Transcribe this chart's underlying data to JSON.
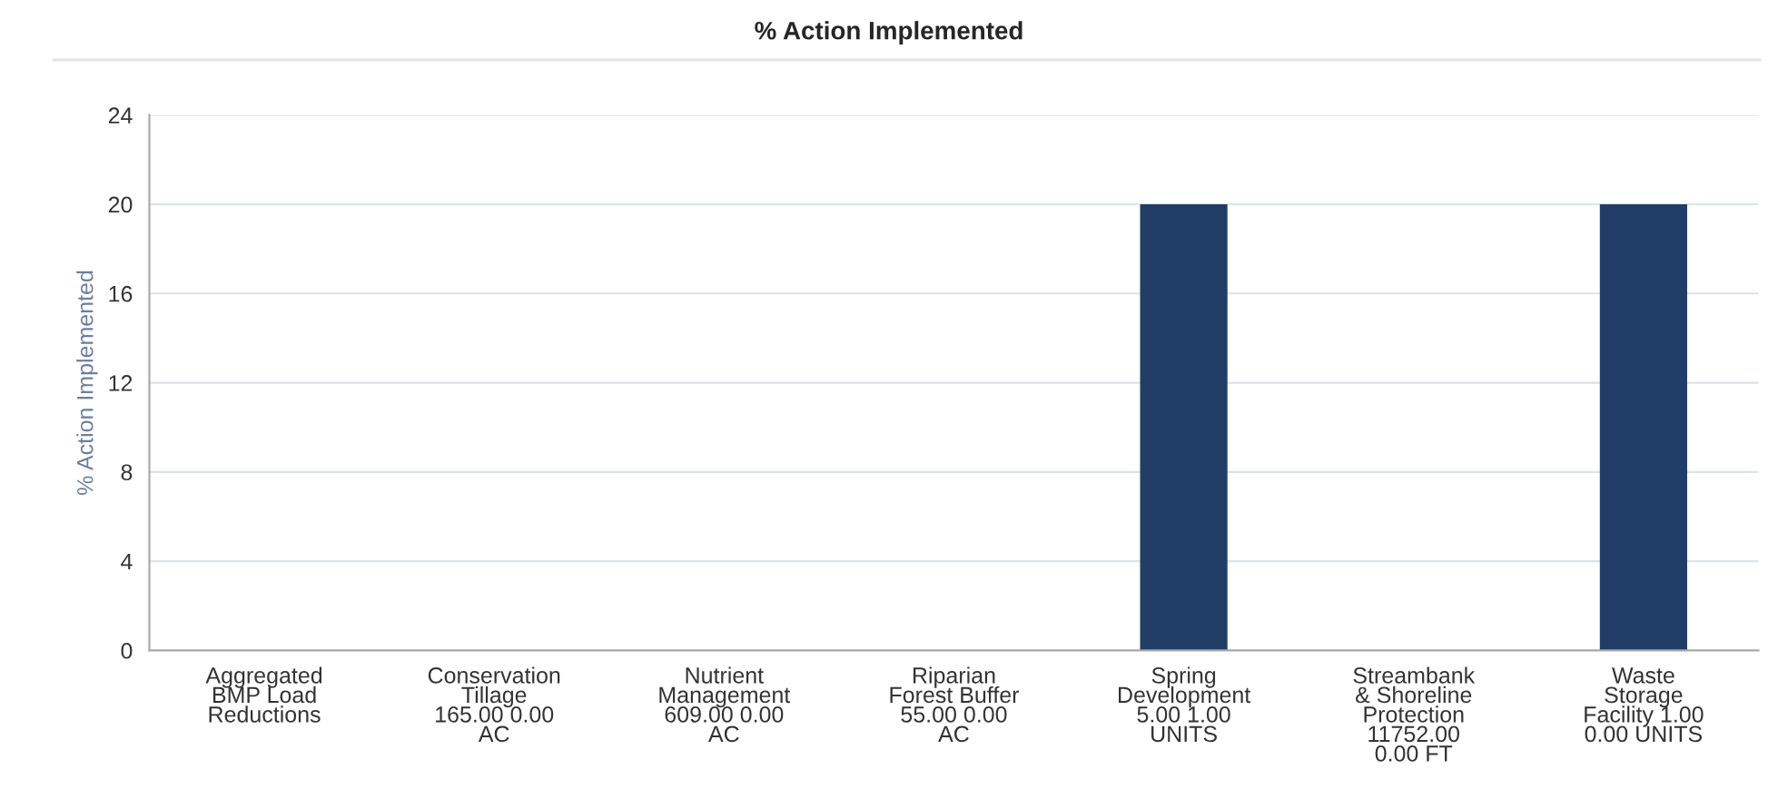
{
  "chart_data": {
    "type": "bar",
    "title": "% Action Implemented",
    "ylabel": "% Action Implemented",
    "categories": [
      "Aggregated\nBMP Load\nReductions",
      "Conservation\nTillage\n165.00 0.00\nAC",
      "Nutrient\nManagement\n609.00 0.00\nAC",
      "Riparian\nForest Buffer\n55.00 0.00\nAC",
      "Spring\nDevelopment\n5.00 1.00\nUNITS",
      "Streambank\n& Shoreline\nProtection\n11752.00\n0.00 FT",
      "Waste\nStorage\nFacility 1.00\n0.00 UNITS"
    ],
    "values": [
      0,
      0,
      0,
      0,
      20,
      0,
      20
    ],
    "color": "#1f3d66",
    "ylim": [
      0,
      24
    ],
    "yticks": [
      0,
      4,
      8,
      12,
      16,
      20,
      24
    ],
    "grid": "y"
  }
}
